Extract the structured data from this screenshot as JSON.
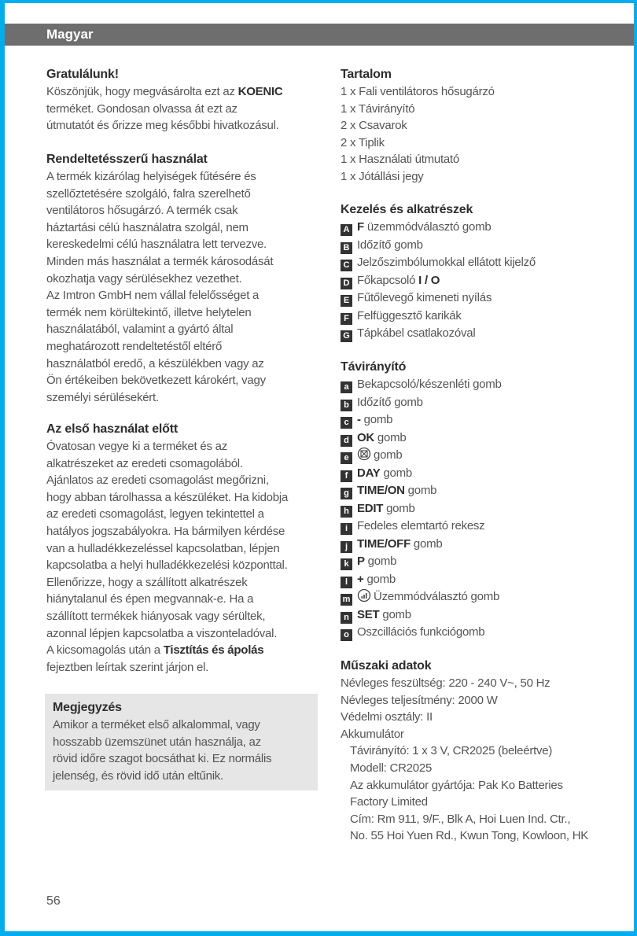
{
  "header": {
    "title": "Magyar"
  },
  "left": [
    {
      "heading": "Gratulálunk!",
      "lines": [
        [
          {
            "t": "Köszönjük, hogy megvásárolta ezt az "
          },
          {
            "t": "KOENIC",
            "b": true
          }
        ],
        [
          {
            "t": "terméket. Gondosan olvassa át ezt az"
          }
        ],
        [
          {
            "t": "útmutatót és őrizze meg későbbi hivatkozásul."
          }
        ]
      ]
    },
    {
      "heading": "Rendeltetésszerű használat",
      "lines": [
        [
          {
            "t": "A termék kizárólag helyiségek fűtésére és"
          }
        ],
        [
          {
            "t": "szellőztetésére szolgáló, falra szerelhető"
          }
        ],
        [
          {
            "t": "ventilátoros hősugárzó. A termék csak"
          }
        ],
        [
          {
            "t": "háztartási célú használatra szolgál, nem"
          }
        ],
        [
          {
            "t": "kereskedelmi célú használatra lett tervezve."
          }
        ],
        [
          {
            "t": "Minden más használat a termék károsodását"
          }
        ],
        [
          {
            "t": "okozhatja vagy sérülésekhez vezethet."
          }
        ],
        [
          {
            "t": "Az Imtron GmbH nem vállal felelősséget a"
          }
        ],
        [
          {
            "t": "termék nem körültekintő, illetve helytelen"
          }
        ],
        [
          {
            "t": "használatából, valamint a gyártó által"
          }
        ],
        [
          {
            "t": "meghatározott rendeltetéstől eltérő"
          }
        ],
        [
          {
            "t": "használatból eredő, a készülékben vagy az"
          }
        ],
        [
          {
            "t": "Ön értékeiben bekövetkezett károkért, vagy"
          }
        ],
        [
          {
            "t": "személyi sérülésekért."
          }
        ]
      ]
    },
    {
      "heading": "Az első használat előtt",
      "lines": [
        [
          {
            "t": "Óvatosan vegye ki a terméket és az"
          }
        ],
        [
          {
            "t": "alkatrészeket az eredeti csomagolából."
          }
        ],
        [
          {
            "t": "Ajánlatos az eredeti csomagolást megőrizni,"
          }
        ],
        [
          {
            "t": "hogy abban tárolhassa a készüléket. Ha kidobja"
          }
        ],
        [
          {
            "t": "az eredeti csomagolást, legyen tekintettel a"
          }
        ],
        [
          {
            "t": "hatályos jogszabályokra. Ha bármilyen kérdése"
          }
        ],
        [
          {
            "t": "van a hulladékkezeléssel kapcsolatban, lépjen"
          }
        ],
        [
          {
            "t": "kapcsolatba a helyi hulladékkezelési központtal."
          }
        ],
        [
          {
            "t": "Ellenőrizze, hogy a szállított alkatrészek"
          }
        ],
        [
          {
            "t": "hiánytalanul és épen megvannak-e. Ha a"
          }
        ],
        [
          {
            "t": "szállított termékek hiányosak vagy sérültek,"
          }
        ],
        [
          {
            "t": "azonnal lépjen kapcsolatba a viszonteladóval."
          }
        ],
        [
          {
            "t": "A kicsomagolás után a "
          },
          {
            "t": "Tisztítás és ápolás",
            "b": true
          }
        ],
        [
          {
            "t": "fejeztben leírtak szerint járjon el."
          }
        ]
      ]
    }
  ],
  "note": {
    "heading": "Megjegyzés",
    "lines": [
      [
        {
          "t": "Amikor a terméket első alkalommal, vagy"
        }
      ],
      [
        {
          "t": "hosszabb üzemszünet után használja, az"
        }
      ],
      [
        {
          "t": "rövid időre szagot bocsáthat ki. Ez normális"
        }
      ],
      [
        {
          "t": "jelenség, és rövid idő után eltűnik."
        }
      ]
    ]
  },
  "right": [
    {
      "heading": "Tartalom",
      "lines": [
        [
          {
            "t": "1 x Fali ventilátoros hősugárzó"
          }
        ],
        [
          {
            "t": "1 x Távirányító"
          }
        ],
        [
          {
            "t": "2 x Csavarok"
          }
        ],
        [
          {
            "t": "2 x Tiplik"
          }
        ],
        [
          {
            "t": "1 x Használati útmutató"
          }
        ],
        [
          {
            "t": "1 x Jótállási jegy"
          }
        ]
      ]
    },
    {
      "heading": "Kezelés és alkatrészek",
      "lines": [
        [
          {
            "badge": "A"
          },
          {
            "t": "F",
            "b": true
          },
          {
            "t": " üzemmódválasztó gomb"
          }
        ],
        [
          {
            "badge": "B"
          },
          {
            "t": "Időzítő gomb"
          }
        ],
        [
          {
            "badge": "C"
          },
          {
            "t": "Jelzőszimbólumokkal ellátott kijelző"
          }
        ],
        [
          {
            "badge": "D"
          },
          {
            "t": "Főkapcsoló "
          },
          {
            "t": "I / O",
            "b": true
          }
        ],
        [
          {
            "badge": "E"
          },
          {
            "t": "Fűtőlevegő kimeneti nyílás"
          }
        ],
        [
          {
            "badge": "F"
          },
          {
            "t": "Felfüggesztő karikák"
          }
        ],
        [
          {
            "badge": "G"
          },
          {
            "t": "Tápkábel csatlakozóval"
          }
        ]
      ]
    },
    {
      "heading": "Távirányító",
      "lines": [
        [
          {
            "badge": "a"
          },
          {
            "t": "Bekapcsoló/készenléti gomb"
          }
        ],
        [
          {
            "badge": "b"
          },
          {
            "t": "Időzítő gomb"
          }
        ],
        [
          {
            "badge": "c"
          },
          {
            "t": "- ",
            "b": true
          },
          {
            "t": "gomb"
          }
        ],
        [
          {
            "badge": "d"
          },
          {
            "t": "OK",
            "b": true
          },
          {
            "t": " gomb"
          }
        ],
        [
          {
            "badge": "e"
          },
          {
            "icon": "fan-mode-icon"
          },
          {
            "t": "gomb"
          }
        ],
        [
          {
            "badge": "f"
          },
          {
            "t": "DAY",
            "b": true
          },
          {
            "t": " gomb"
          }
        ],
        [
          {
            "badge": "g"
          },
          {
            "t": "TIME/ON",
            "b": true
          },
          {
            "t": " gomb"
          }
        ],
        [
          {
            "badge": "h"
          },
          {
            "t": "EDIT",
            "b": true
          },
          {
            "t": " gomb"
          }
        ],
        [
          {
            "badge": "i"
          },
          {
            "t": "Fedeles elemtartó rekesz"
          }
        ],
        [
          {
            "badge": "j"
          },
          {
            "t": "TIME/OFF",
            "b": true
          },
          {
            "t": " gomb"
          }
        ],
        [
          {
            "badge": "k"
          },
          {
            "t": "P",
            "b": true
          },
          {
            "t": " gomb"
          }
        ],
        [
          {
            "badge": "l"
          },
          {
            "t": "+ ",
            "b": true
          },
          {
            "t": "gomb"
          }
        ],
        [
          {
            "badge": "m"
          },
          {
            "icon": "power-level-icon"
          },
          {
            "t": "Üzemmódválasztó gomb"
          }
        ],
        [
          {
            "badge": "n"
          },
          {
            "t": "SET",
            "b": true
          },
          {
            "t": " gomb"
          }
        ],
        [
          {
            "badge": "o"
          },
          {
            "t": "Oszcillációs funkciógomb"
          }
        ]
      ]
    },
    {
      "heading": "Műszaki adatok",
      "lines": [
        [
          {
            "t": "Névleges feszültség: 220 - 240 V~, 50 Hz"
          }
        ],
        [
          {
            "t": "Névleges teljesítmény: 2000 W"
          }
        ],
        [
          {
            "t": "Védelmi osztály: II"
          }
        ],
        [
          {
            "t": "Akkumulátor"
          }
        ],
        [
          {
            "t": "Távirányító: 1 x 3 V, CR2025 (beleértve)",
            "ind": true
          }
        ],
        [
          {
            "t": "Modell: CR2025",
            "ind": true
          }
        ],
        [
          {
            "t": "Az akkumulátor gyártója: Pak Ko Batteries",
            "ind": true
          }
        ],
        [
          {
            "t": "Factory Limited",
            "ind": true
          }
        ],
        [
          {
            "t": "Cím: Rm 911, 9/F., Blk A, Hoi Luen Ind. Ctr.,",
            "ind": true
          }
        ],
        [
          {
            "t": "No. 55 Hoi Yuen Rd., Kwun Tong, Kowloon, HK",
            "ind": true
          }
        ]
      ]
    }
  ],
  "page_number": "56",
  "colors": {
    "frame": "#00aeef",
    "header_bar": "#6f6e6e",
    "note_bg": "#e6e6e6",
    "badge": "#333333"
  }
}
